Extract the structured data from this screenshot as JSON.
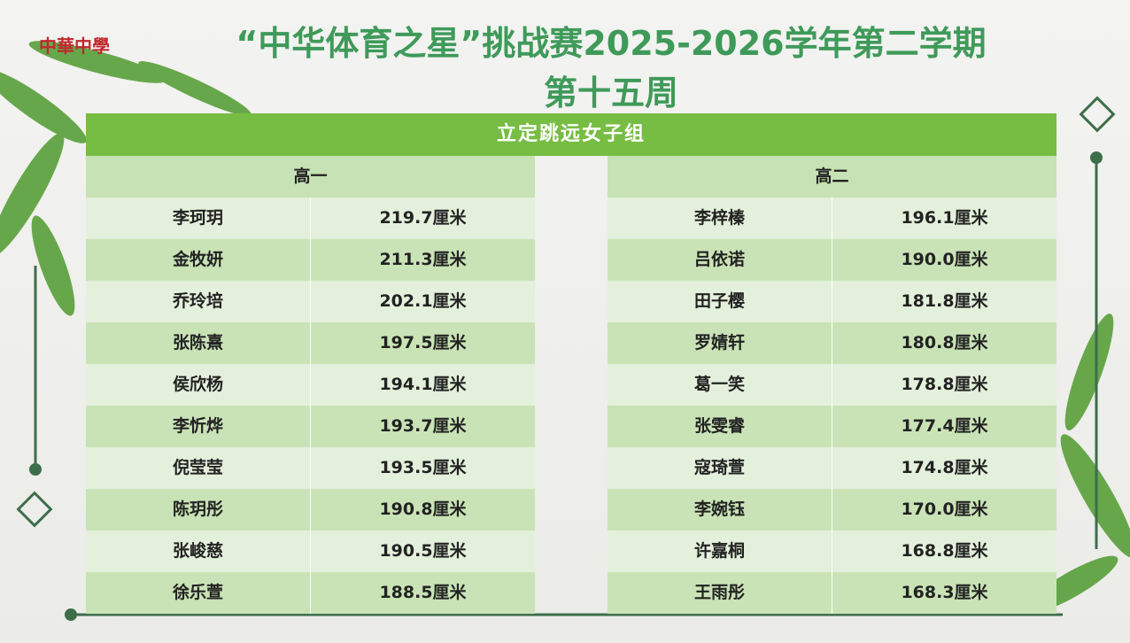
{
  "header": {
    "logo": "中華中學",
    "title": "“中华体育之星”挑战赛2025-2026学年第二学期",
    "subtitle": "第十五周"
  },
  "table": {
    "title": "立定跳远女子组",
    "groups": [
      {
        "label": "高一",
        "rows": [
          {
            "name": "李珂玥",
            "score": "219.7厘米"
          },
          {
            "name": "金牧妍",
            "score": "211.3厘米"
          },
          {
            "name": "乔玲培",
            "score": "202.1厘米"
          },
          {
            "name": "张陈熹",
            "score": "197.5厘米"
          },
          {
            "name": "侯欣杨",
            "score": "194.1厘米"
          },
          {
            "name": "李忻烨",
            "score": "193.7厘米"
          },
          {
            "name": "倪莹莹",
            "score": "193.5厘米"
          },
          {
            "name": "陈玥彤",
            "score": "190.8厘米"
          },
          {
            "name": "张峻慈",
            "score": "190.5厘米"
          },
          {
            "name": "徐乐萱",
            "score": "188.5厘米"
          }
        ]
      },
      {
        "label": "高二",
        "rows": [
          {
            "name": "李梓榛",
            "score": "196.1厘米"
          },
          {
            "name": "吕依诺",
            "score": "190.0厘米"
          },
          {
            "name": "田子樱",
            "score": "181.8厘米"
          },
          {
            "name": "罗婧轩",
            "score": "180.8厘米"
          },
          {
            "name": "葛一笑",
            "score": "178.8厘米"
          },
          {
            "name": "张雯睿",
            "score": "177.4厘米"
          },
          {
            "name": "寇琦萱",
            "score": "174.8厘米"
          },
          {
            "name": "李婉钰",
            "score": "170.0厘米"
          },
          {
            "name": "许嘉桐",
            "score": "168.8厘米"
          },
          {
            "name": "王雨彤",
            "score": "168.3厘米"
          }
        ]
      }
    ]
  }
}
